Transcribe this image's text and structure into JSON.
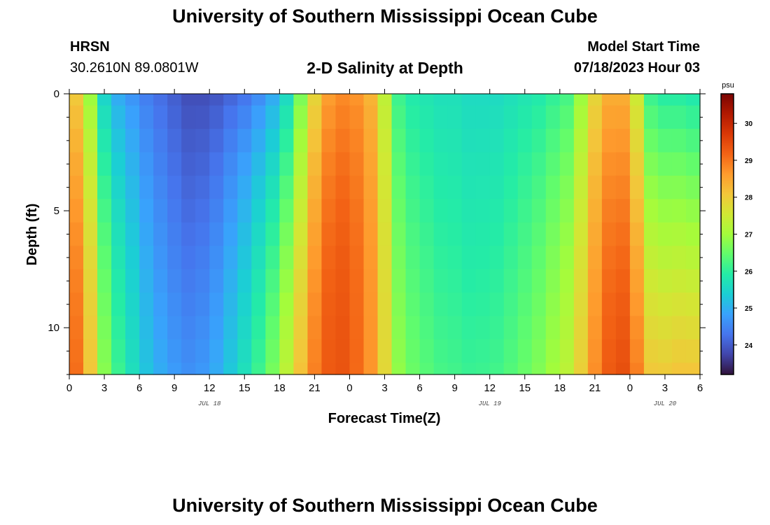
{
  "header": {
    "title": "University of Southern Mississippi Ocean Cube",
    "station": "HRSN",
    "coords": "30.2610N  89.0801W",
    "subtitle": "2-D Salinity at Depth",
    "model_start_label": "Model Start Time",
    "model_start_value": "07/18/2023 Hour 03",
    "footer_title": "University of Southern Mississippi Ocean Cube"
  },
  "colors": {
    "scale": [
      "#30123b",
      "#4145ab",
      "#4675ed",
      "#39a2fc",
      "#1bcfd4",
      "#24eca6",
      "#61fc6c",
      "#a4fc3b",
      "#d1e834",
      "#f3c63a",
      "#fe9b2d",
      "#f36315",
      "#d93806",
      "#b11901",
      "#7a0402"
    ]
  },
  "chart_data": {
    "type": "heatmap",
    "title": "2-D Salinity at Depth",
    "xlabel": "Forecast Time(Z)",
    "ylabel": "Depth (ft)",
    "x_range_hours": [
      0,
      54
    ],
    "y_range_ft": [
      0,
      12
    ],
    "x_tick_labels": [
      "0",
      "3",
      "6",
      "9",
      "12",
      "15",
      "18",
      "21",
      "0",
      "3",
      "6",
      "9",
      "12",
      "15",
      "18",
      "21",
      "0",
      "3",
      "6"
    ],
    "x_tick_hours": [
      0,
      3,
      6,
      9,
      12,
      15,
      18,
      21,
      24,
      27,
      30,
      33,
      36,
      39,
      42,
      45,
      48,
      51,
      54
    ],
    "y_tick_labels": [
      "0",
      "5",
      "10"
    ],
    "y_tick_values": [
      0,
      5,
      10
    ],
    "date_labels": [
      {
        "text": "JUL 18",
        "hour": 12
      },
      {
        "text": "JUL 19",
        "hour": 36
      },
      {
        "text": "JUL 20",
        "hour": 51
      }
    ],
    "colorbar": {
      "unit": "psu",
      "min": 23.2,
      "max": 30.8,
      "ticks": [
        24,
        25,
        26,
        27,
        28,
        29,
        30
      ]
    },
    "surface_salinity_psu": [
      28.0,
      26.8,
      25.2,
      24.6,
      24.3,
      24.0,
      23.8,
      23.6,
      23.4,
      23.4,
      23.5,
      23.7,
      23.9,
      24.2,
      24.6,
      25.3,
      26.5,
      27.8,
      28.6,
      28.8,
      28.7,
      28.3,
      27.2,
      25.9,
      25.6,
      25.5,
      25.4,
      25.4,
      25.3,
      25.3,
      25.3,
      25.4,
      25.5,
      25.6,
      25.8,
      26.0,
      26.8,
      27.8,
      28.4,
      28.4,
      27.4,
      25.9,
      25.7,
      25.7,
      25.6
    ],
    "depth_levels_ft": [
      0,
      1,
      2,
      3,
      4,
      5,
      6,
      7,
      8,
      9,
      10,
      11,
      12
    ],
    "time_step_hours": 1.2
  }
}
